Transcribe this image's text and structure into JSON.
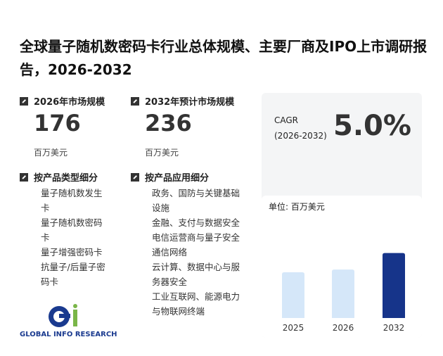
{
  "title": "全球量子随机数密码卡行业总体规模、主要厂商及IPO上市调研报告，2026-2032",
  "stats": [
    {
      "label": "2026年市场规模",
      "value": "176",
      "unit": "百万美元"
    },
    {
      "label": "2032年预计市场规模",
      "value": "236",
      "unit": "百万美元"
    }
  ],
  "segments": [
    {
      "title": "按产品类型细分",
      "items": [
        "量子随机数发生卡",
        "量子随机数密码卡",
        "量子增强密码卡",
        "抗量子/后量子密码卡"
      ]
    },
    {
      "title": "按产品应用细分",
      "items": [
        "政务、国防与关键基础设施",
        "金融、支付与数据安全",
        "电信运营商与量子安全通信网络",
        "云计算、数据中心与服务器安全",
        "工业互联网、能源电力与物联网终端"
      ]
    }
  ],
  "logo": "GLOBAL INFO RESEARCH",
  "cagr": {
    "label": "CAGR",
    "period": "(2026-2032)",
    "value": "5.0%"
  },
  "chart_data": {
    "type": "bar",
    "unit": "单位: 百万美元",
    "categories": [
      "2025",
      "2026",
      "2032"
    ],
    "values": [
      166,
      176,
      236
    ],
    "colors": [
      "#d5e7f9",
      "#d5e7f9",
      "#16348a"
    ],
    "ylim": [
      0,
      240
    ]
  }
}
